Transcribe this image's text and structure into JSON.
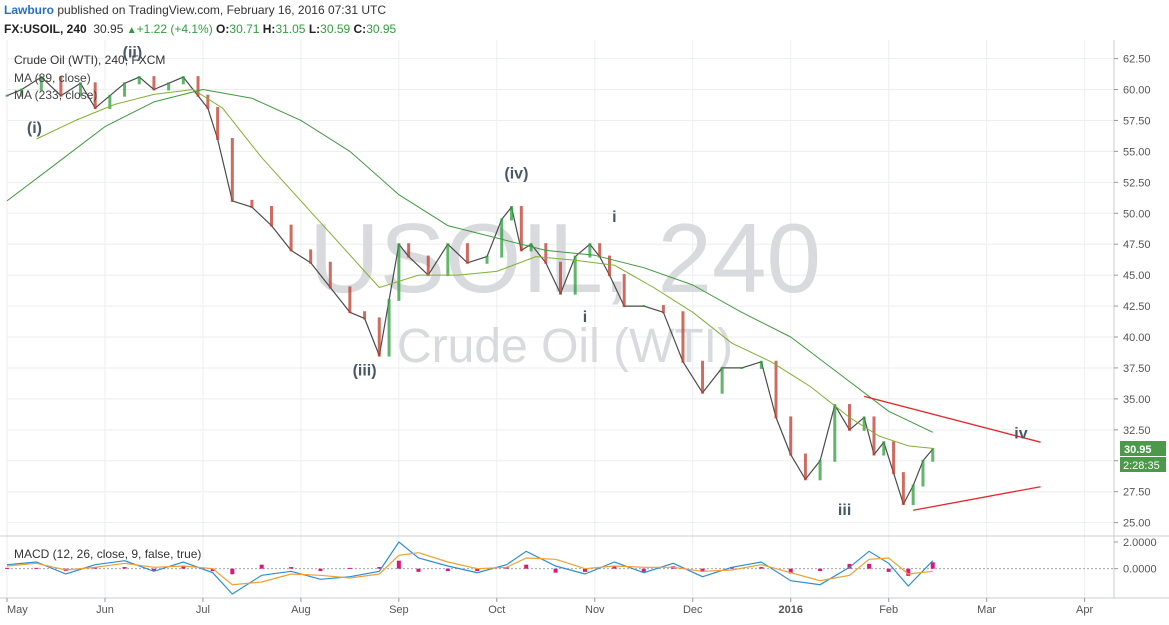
{
  "header": {
    "author": "Lawburo",
    "published_text": "published on TradingView.com, February 16, 2016 07:31 UTC",
    "symbol": "FX:USOIL, 240",
    "last": "30.95",
    "change_text": "+1.22 (+4.1%)",
    "open_label": "O:",
    "open": "30.71",
    "high_label": "H:",
    "high": "31.05",
    "low_label": "L:",
    "low": "30.59",
    "close_label": "C:",
    "close": "30.95"
  },
  "colors": {
    "up": "#2e9e3a",
    "down": "#c0392b",
    "ma_fast": "#7fb22e",
    "ma_slow": "#3f9a3f",
    "trendline": "#e8262b",
    "macd": "#2c8fd6",
    "signal": "#f0a030",
    "hist": "#e0157a",
    "label": "#4a5866",
    "watermark": "#d8dadd",
    "price_tag": "#4a9a4a"
  },
  "chart_data": [
    {
      "type": "line",
      "title": "Crude Oil (WTI), 240, FXCM",
      "watermark_symbol": "USOIL, 240",
      "watermark_name": "Crude Oil (WTI)",
      "indicators": [
        "MA (89, close)",
        "MA (233, close)"
      ],
      "x_tick_labels": [
        "May",
        "Jun",
        "Jul",
        "Aug",
        "Sep",
        "Oct",
        "Nov",
        "Dec",
        "2016",
        "Feb",
        "Mar",
        "Apr"
      ],
      "y_tick_labels": [
        "25.00",
        "27.50",
        "30.00",
        "32.50",
        "35.00",
        "37.50",
        "40.00",
        "42.50",
        "45.00",
        "47.50",
        "50.00",
        "52.50",
        "55.00",
        "57.50",
        "60.00",
        "62.50"
      ],
      "ylim": [
        24,
        64
      ],
      "xlim": [
        0,
        11.3
      ],
      "price_tag": "30.95",
      "countdown": "2:28:35",
      "series": [
        {
          "role": "price",
          "x": [
            0,
            0.15,
            0.35,
            0.55,
            0.75,
            0.9,
            1.05,
            1.2,
            1.35,
            1.5,
            1.65,
            1.8,
            1.95,
            2.05,
            2.15,
            2.3,
            2.5,
            2.7,
            2.9,
            3.1,
            3.3,
            3.5,
            3.65,
            3.8,
            3.9,
            4.0,
            4.1,
            4.3,
            4.5,
            4.7,
            4.9,
            5.05,
            5.15,
            5.25,
            5.35,
            5.5,
            5.65,
            5.8,
            5.95,
            6.05,
            6.15,
            6.3,
            6.5,
            6.7,
            6.9,
            7.1,
            7.3,
            7.5,
            7.7,
            7.85,
            8.0,
            8.15,
            8.3,
            8.45,
            8.6,
            8.75,
            8.85,
            8.95,
            9.05,
            9.15,
            9.25,
            9.35,
            9.45
          ],
          "values": [
            59.5,
            60.0,
            61.0,
            59.5,
            60.5,
            58.5,
            59.5,
            60.5,
            61.0,
            60.0,
            60.5,
            61.0,
            59.5,
            58.5,
            56.0,
            51.0,
            50.5,
            49.0,
            47.0,
            46.0,
            44.0,
            42.0,
            41.5,
            38.5,
            43.0,
            47.5,
            46.5,
            45.0,
            47.5,
            46.0,
            46.5,
            49.5,
            50.5,
            47.0,
            47.5,
            46.0,
            43.5,
            46.5,
            47.5,
            46.5,
            45.0,
            42.5,
            42.5,
            42.0,
            38.0,
            35.5,
            37.5,
            37.5,
            38.0,
            33.5,
            30.5,
            28.5,
            30.0,
            34.5,
            32.5,
            33.5,
            30.5,
            31.5,
            29.0,
            26.5,
            28.0,
            30.0,
            30.95
          ]
        },
        {
          "role": "ma_fast",
          "name": "MA (89, close)",
          "x": [
            0.3,
            0.7,
            1.1,
            1.5,
            1.9,
            2.2,
            2.6,
            3.0,
            3.4,
            3.8,
            4.2,
            4.6,
            5.0,
            5.4,
            5.8,
            6.2,
            6.6,
            7.0,
            7.4,
            7.8,
            8.2,
            8.6,
            8.9,
            9.2,
            9.45
          ],
          "values": [
            56,
            57.5,
            58.8,
            59.6,
            60.0,
            58.5,
            54.5,
            51.0,
            47.5,
            44.0,
            45.0,
            45.0,
            45.3,
            46.5,
            46.2,
            45.8,
            44.0,
            42.0,
            39.5,
            38.0,
            36.0,
            33.5,
            32.0,
            31.2,
            31.0
          ]
        },
        {
          "role": "ma_slow",
          "name": "MA (233, close)",
          "x": [
            0,
            0.5,
            1.0,
            1.5,
            2.0,
            2.5,
            3.0,
            3.5,
            4.0,
            4.5,
            5.0,
            5.5,
            6.0,
            6.5,
            7.0,
            7.5,
            8.0,
            8.5,
            9.0,
            9.45
          ],
          "values": [
            51.0,
            54.0,
            57.0,
            59.0,
            60.0,
            59.3,
            57.5,
            55.0,
            51.5,
            49.0,
            48.0,
            47.0,
            46.6,
            45.6,
            44.2,
            42.0,
            40.0,
            37.0,
            34.0,
            32.3
          ]
        }
      ],
      "trendlines": [
        {
          "x": [
            8.75,
            10.55
          ],
          "values": [
            35.2,
            31.5
          ]
        },
        {
          "x": [
            9.25,
            10.55
          ],
          "values": [
            26.0,
            27.9
          ]
        }
      ],
      "annotations": [
        {
          "text": "(ii)",
          "x": 1.28,
          "y": 62.6
        },
        {
          "text": "(i)",
          "x": 0.28,
          "y": 56.5
        },
        {
          "text": "(iv)",
          "x": 5.2,
          "y": 52.8
        },
        {
          "text": "(iii)",
          "x": 3.65,
          "y": 36.9
        },
        {
          "text": "i",
          "x": 6.2,
          "y": 49.3
        },
        {
          "text": "i",
          "x": 5.9,
          "y": 41.2
        },
        {
          "text": "iii",
          "x": 8.55,
          "y": 25.6
        },
        {
          "text": "iv",
          "x": 10.35,
          "y": 31.8
        }
      ]
    },
    {
      "type": "line",
      "title": "MACD (12, 26, close, 9, false, true)",
      "y_tick_labels": [
        "2.0000",
        "0.0000"
      ],
      "ylim": [
        -2.2,
        2.3
      ],
      "series": [
        {
          "role": "macd",
          "x": [
            0,
            0.3,
            0.6,
            0.9,
            1.2,
            1.5,
            1.8,
            2.1,
            2.3,
            2.6,
            2.9,
            3.2,
            3.5,
            3.8,
            4.0,
            4.2,
            4.5,
            4.8,
            5.1,
            5.3,
            5.6,
            5.9,
            6.2,
            6.5,
            6.8,
            7.1,
            7.4,
            7.7,
            8.0,
            8.3,
            8.6,
            8.8,
            9.0,
            9.2,
            9.45
          ],
          "values": [
            0.3,
            0.5,
            -0.4,
            0.3,
            0.6,
            -0.2,
            0.5,
            -0.3,
            -1.9,
            -0.5,
            -0.2,
            -0.8,
            -0.6,
            -0.2,
            2.0,
            0.8,
            0.2,
            -0.3,
            0.3,
            1.3,
            0.2,
            -0.4,
            0.5,
            -0.3,
            0.4,
            -0.6,
            0.1,
            0.5,
            -0.9,
            -1.2,
            0.1,
            1.3,
            0.4,
            -1.3,
            0.6
          ]
        },
        {
          "role": "signal",
          "x": [
            0,
            0.3,
            0.6,
            0.9,
            1.2,
            1.5,
            1.8,
            2.1,
            2.3,
            2.6,
            2.9,
            3.2,
            3.5,
            3.8,
            4.0,
            4.2,
            4.5,
            4.8,
            5.1,
            5.3,
            5.6,
            5.9,
            6.2,
            6.5,
            6.8,
            7.1,
            7.4,
            7.7,
            8.0,
            8.3,
            8.6,
            8.8,
            9.0,
            9.2,
            9.45
          ],
          "values": [
            0.2,
            0.4,
            -0.1,
            0.1,
            0.4,
            0.1,
            0.2,
            0.0,
            -1.2,
            -1.0,
            -0.4,
            -0.5,
            -0.7,
            -0.4,
            1.0,
            1.2,
            0.5,
            0.0,
            0.1,
            0.8,
            0.7,
            0.0,
            0.2,
            0.1,
            0.1,
            -0.2,
            -0.1,
            0.3,
            -0.3,
            -0.9,
            -0.5,
            0.7,
            0.8,
            -0.4,
            -0.2
          ]
        }
      ]
    }
  ]
}
